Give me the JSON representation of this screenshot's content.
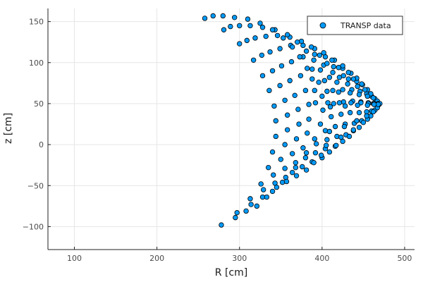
{
  "chart_data": {
    "type": "scatter",
    "xlabel": "R [cm]",
    "ylabel": "z [cm]",
    "xlim": [
      68,
      512
    ],
    "ylim": [
      -128,
      166
    ],
    "xticks": [
      100,
      200,
      300,
      400,
      500
    ],
    "yticks": [
      -100,
      -50,
      0,
      50,
      100,
      150
    ],
    "grid": true,
    "legend": "top-right",
    "series": [
      {
        "name": "TRANSP data",
        "color": "#009af9",
        "points": [
          [
            258,
            154
          ],
          [
            281,
            140
          ],
          [
            300,
            123
          ],
          [
            317,
            103
          ],
          [
            328,
            84
          ],
          [
            336,
            66
          ],
          [
            342,
            47
          ],
          [
            344,
            29
          ],
          [
            344,
            10
          ],
          [
            340,
            -9
          ],
          [
            335,
            -28
          ],
          [
            326,
            -48
          ],
          [
            313,
            -66
          ],
          [
            297,
            -83
          ],
          [
            278,
            -98
          ],
          [
            268,
            157
          ],
          [
            289,
            144
          ],
          [
            309,
            127
          ],
          [
            327,
            109
          ],
          [
            340,
            90
          ],
          [
            349,
            72
          ],
          [
            355,
            54
          ],
          [
            358,
            36
          ],
          [
            358,
            18
          ],
          [
            355,
            0
          ],
          [
            350,
            -18
          ],
          [
            341,
            -37
          ],
          [
            329,
            -55
          ],
          [
            314,
            -73
          ],
          [
            295,
            -89
          ],
          [
            280,
            157
          ],
          [
            300,
            145
          ],
          [
            319,
            130
          ],
          [
            337,
            113
          ],
          [
            351,
            96
          ],
          [
            361,
            78
          ],
          [
            367,
            60
          ],
          [
            371,
            43
          ],
          [
            372,
            25
          ],
          [
            369,
            7
          ],
          [
            364,
            -11
          ],
          [
            355,
            -29
          ],
          [
            343,
            -47
          ],
          [
            328,
            -64
          ],
          [
            308,
            -81
          ],
          [
            294,
            155
          ],
          [
            313,
            145
          ],
          [
            332,
            132
          ],
          [
            349,
            117
          ],
          [
            363,
            101
          ],
          [
            374,
            84
          ],
          [
            380,
            66
          ],
          [
            384,
            49
          ],
          [
            384,
            31
          ],
          [
            382,
            14
          ],
          [
            377,
            -4
          ],
          [
            368,
            -22
          ],
          [
            356,
            -40
          ],
          [
            340,
            -57
          ],
          [
            321,
            -75
          ],
          [
            310,
            153
          ],
          [
            328,
            143
          ],
          [
            346,
            133
          ],
          [
            362,
            121
          ],
          [
            377,
            107
          ],
          [
            388,
            92
          ],
          [
            396,
            76
          ],
          [
            400,
            59
          ],
          [
            401,
            42
          ],
          [
            398,
            25
          ],
          [
            391,
            7
          ],
          [
            381,
            -10
          ],
          [
            368,
            -28
          ],
          [
            352,
            -46
          ],
          [
            333,
            -64
          ],
          [
            325,
            148
          ],
          [
            343,
            140
          ],
          [
            361,
            131
          ],
          [
            377,
            121
          ],
          [
            391,
            110
          ],
          [
            402,
            97
          ],
          [
            409,
            82
          ],
          [
            413,
            66
          ],
          [
            414,
            50
          ],
          [
            411,
            34
          ],
          [
            404,
            17
          ],
          [
            393,
            1
          ],
          [
            380,
            -16
          ],
          [
            364,
            -34
          ],
          [
            345,
            -52
          ],
          [
            340,
            140
          ],
          [
            358,
            134
          ],
          [
            375,
            126
          ],
          [
            391,
            117
          ],
          [
            404,
            107
          ],
          [
            414,
            95
          ],
          [
            421,
            82
          ],
          [
            425,
            67
          ],
          [
            426,
            52
          ],
          [
            423,
            37
          ],
          [
            416,
            22
          ],
          [
            406,
            6
          ],
          [
            392,
            -10
          ],
          [
            376,
            -27
          ],
          [
            357,
            -45
          ],
          [
            353,
            130
          ],
          [
            370,
            125
          ],
          [
            387,
            119
          ],
          [
            402,
            112
          ],
          [
            415,
            103
          ],
          [
            425,
            93
          ],
          [
            432,
            80
          ],
          [
            436,
            67
          ],
          [
            437,
            53
          ],
          [
            434,
            39
          ],
          [
            428,
            25
          ],
          [
            418,
            10
          ],
          [
            404,
            -5
          ],
          [
            388,
            -21
          ],
          [
            369,
            -38
          ],
          [
            364,
            119
          ],
          [
            381,
            114
          ],
          [
            397,
            109
          ],
          [
            412,
            103
          ],
          [
            425,
            96
          ],
          [
            435,
            87
          ],
          [
            442,
            77
          ],
          [
            446,
            65
          ],
          [
            447,
            52
          ],
          [
            445,
            39
          ],
          [
            439,
            26
          ],
          [
            429,
            12
          ],
          [
            416,
            -2
          ],
          [
            400,
            -16
          ],
          [
            381,
            -31
          ],
          [
            373,
            107
          ],
          [
            390,
            103
          ],
          [
            406,
            99
          ],
          [
            420,
            94
          ],
          [
            432,
            88
          ],
          [
            442,
            81
          ],
          [
            449,
            73
          ],
          [
            454,
            62
          ],
          [
            456,
            51
          ],
          [
            454,
            40
          ],
          [
            448,
            29
          ],
          [
            438,
            17
          ],
          [
            425,
            4
          ],
          [
            409,
            -9
          ],
          [
            390,
            -22
          ],
          [
            382,
            93
          ],
          [
            398,
            91
          ],
          [
            413,
            88
          ],
          [
            426,
            84
          ],
          [
            438,
            80
          ],
          [
            448,
            74
          ],
          [
            455,
            67
          ],
          [
            460,
            59
          ],
          [
            462,
            50
          ],
          [
            460,
            41
          ],
          [
            455,
            31
          ],
          [
            445,
            21
          ],
          [
            433,
            10
          ],
          [
            417,
            -1
          ],
          [
            399,
            -13
          ],
          [
            388,
            80
          ],
          [
            403,
            78
          ],
          [
            418,
            76
          ],
          [
            431,
            74
          ],
          [
            443,
            71
          ],
          [
            452,
            67
          ],
          [
            459,
            62
          ],
          [
            464,
            56
          ],
          [
            466,
            49
          ],
          [
            464,
            42
          ],
          [
            459,
            35
          ],
          [
            450,
            27
          ],
          [
            438,
            18
          ],
          [
            423,
            9
          ],
          [
            405,
            -1
          ],
          [
            391,
            66
          ],
          [
            406,
            65
          ],
          [
            420,
            64
          ],
          [
            434,
            63
          ],
          [
            445,
            61
          ],
          [
            455,
            59
          ],
          [
            462,
            57
          ],
          [
            467,
            53
          ],
          [
            469,
            49
          ],
          [
            467,
            45
          ],
          [
            462,
            40
          ],
          [
            454,
            35
          ],
          [
            442,
            29
          ],
          [
            427,
            22
          ],
          [
            409,
            16
          ],
          [
            392,
            51
          ],
          [
            407,
            51
          ],
          [
            421,
            51
          ],
          [
            435,
            51
          ],
          [
            447,
            51
          ],
          [
            456,
            50
          ],
          [
            463,
            50
          ],
          [
            468,
            50
          ],
          [
            470,
            50
          ],
          [
            468,
            49
          ],
          [
            463,
            49
          ],
          [
            455,
            48
          ],
          [
            443,
            48
          ],
          [
            428,
            47
          ],
          [
            410,
            46
          ]
        ]
      }
    ]
  }
}
